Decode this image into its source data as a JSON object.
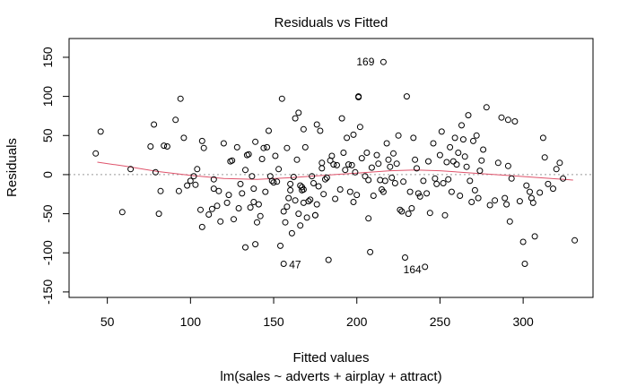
{
  "chart_data": {
    "type": "scatter",
    "title": "Residuals vs Fitted",
    "xlabel": "Fitted values",
    "xlabel2": "lm(sales ~ adverts + airplay + attract)",
    "ylabel": "Residuals",
    "xlim": [
      27,
      342
    ],
    "ylim": [
      -157,
      174
    ],
    "xticks": [
      "50",
      "100",
      "150",
      "200",
      "250",
      "300"
    ],
    "yticks": [
      "-150",
      "-100",
      "-50",
      "0",
      "50",
      "100",
      "150"
    ],
    "smoother_color": "#DF536B",
    "zero_line_color": "#999999",
    "labeled_points": [
      {
        "label": "169",
        "x": 216,
        "y": 144
      },
      {
        "label": "47",
        "x": 156,
        "y": -114
      },
      {
        "label": "164",
        "x": 241,
        "y": -118
      }
    ],
    "smoother": [
      [
        44,
        16
      ],
      [
        60,
        11
      ],
      [
        80,
        4
      ],
      [
        100,
        -1
      ],
      [
        120,
        -5
      ],
      [
        140,
        -6
      ],
      [
        160,
        -4
      ],
      [
        180,
        -1
      ],
      [
        200,
        2
      ],
      [
        220,
        5
      ],
      [
        235,
        6
      ],
      [
        250,
        5
      ],
      [
        270,
        2
      ],
      [
        290,
        -1
      ],
      [
        310,
        -4
      ],
      [
        330,
        -7
      ]
    ],
    "points": [
      [
        43,
        27
      ],
      [
        46,
        55
      ],
      [
        59,
        -48
      ],
      [
        64,
        7
      ],
      [
        76,
        36
      ],
      [
        78,
        64
      ],
      [
        79,
        3
      ],
      [
        81,
        -50
      ],
      [
        82,
        -21
      ],
      [
        84,
        37
      ],
      [
        86,
        36
      ],
      [
        91,
        70
      ],
      [
        93,
        -21
      ],
      [
        94,
        97
      ],
      [
        96,
        47
      ],
      [
        98,
        -14
      ],
      [
        100,
        -8
      ],
      [
        102,
        -2
      ],
      [
        103,
        -13
      ],
      [
        104,
        7
      ],
      [
        106,
        -45
      ],
      [
        107,
        43
      ],
      [
        107,
        -67
      ],
      [
        108,
        34
      ],
      [
        111,
        -51
      ],
      [
        113,
        -44
      ],
      [
        114,
        -6
      ],
      [
        114,
        -18
      ],
      [
        116,
        -40
      ],
      [
        117,
        -21
      ],
      [
        118,
        -60
      ],
      [
        120,
        40
      ],
      [
        122,
        -36
      ],
      [
        123,
        -26
      ],
      [
        124,
        17
      ],
      [
        125,
        18
      ],
      [
        126,
        -57
      ],
      [
        128,
        35
      ],
      [
        129,
        -43
      ],
      [
        130,
        -12
      ],
      [
        131,
        -24
      ],
      [
        133,
        -93
      ],
      [
        133,
        6
      ],
      [
        134,
        25
      ],
      [
        135,
        26
      ],
      [
        136,
        -42
      ],
      [
        137,
        -2
      ],
      [
        138,
        -18
      ],
      [
        138,
        -35
      ],
      [
        139,
        42
      ],
      [
        139,
        -89
      ],
      [
        140,
        -61
      ],
      [
        141,
        -38
      ],
      [
        142,
        -53
      ],
      [
        143,
        20
      ],
      [
        144,
        34
      ],
      [
        145,
        -22
      ],
      [
        146,
        35
      ],
      [
        147,
        56
      ],
      [
        148,
        -2
      ],
      [
        149,
        -8
      ],
      [
        150,
        -10
      ],
      [
        151,
        24
      ],
      [
        152,
        -9
      ],
      [
        153,
        7
      ],
      [
        154,
        -91
      ],
      [
        155,
        97
      ],
      [
        156,
        -114
      ],
      [
        156,
        -47
      ],
      [
        157,
        -61
      ],
      [
        158,
        34
      ],
      [
        158,
        -41
      ],
      [
        159,
        -30
      ],
      [
        160,
        -12
      ],
      [
        160,
        -20
      ],
      [
        161,
        -75
      ],
      [
        162,
        -3
      ],
      [
        163,
        72
      ],
      [
        163,
        -33
      ],
      [
        164,
        19
      ],
      [
        165,
        79
      ],
      [
        165,
        -50
      ],
      [
        166,
        -14
      ],
      [
        166,
        -65
      ],
      [
        167,
        -20
      ],
      [
        167,
        -16
      ],
      [
        168,
        58
      ],
      [
        168,
        -36
      ],
      [
        168,
        -19
      ],
      [
        169,
        35
      ],
      [
        170,
        -55
      ],
      [
        171,
        -34
      ],
      [
        172,
        -32
      ],
      [
        173,
        -2
      ],
      [
        174,
        -11
      ],
      [
        175,
        -52
      ],
      [
        175,
        -52
      ],
      [
        176,
        64
      ],
      [
        176,
        -38
      ],
      [
        177,
        -15
      ],
      [
        178,
        56
      ],
      [
        179,
        15
      ],
      [
        179,
        8
      ],
      [
        180,
        -25
      ],
      [
        181,
        -6
      ],
      [
        182,
        -4
      ],
      [
        183,
        -109
      ],
      [
        184,
        18
      ],
      [
        185,
        24
      ],
      [
        186,
        13
      ],
      [
        187,
        -31
      ],
      [
        188,
        12
      ],
      [
        190,
        -19
      ],
      [
        191,
        72
      ],
      [
        192,
        28
      ],
      [
        193,
        6
      ],
      [
        194,
        47
      ],
      [
        195,
        13
      ],
      [
        196,
        -22
      ],
      [
        197,
        12
      ],
      [
        198,
        51
      ],
      [
        198,
        -35
      ],
      [
        199,
        3
      ],
      [
        200,
        -26
      ],
      [
        201,
        100
      ],
      [
        201,
        99
      ],
      [
        202,
        61
      ],
      [
        203,
        21
      ],
      [
        205,
        -2
      ],
      [
        206,
        28
      ],
      [
        207,
        -7
      ],
      [
        207,
        -56
      ],
      [
        208,
        -99
      ],
      [
        209,
        9
      ],
      [
        210,
        -27
      ],
      [
        212,
        25
      ],
      [
        213,
        14
      ],
      [
        214,
        -7
      ],
      [
        215,
        -19
      ],
      [
        216,
        -22
      ],
      [
        216,
        144
      ],
      [
        217,
        -8
      ],
      [
        218,
        40
      ],
      [
        219,
        19
      ],
      [
        220,
        10
      ],
      [
        221,
        -4
      ],
      [
        222,
        27
      ],
      [
        223,
        -11
      ],
      [
        224,
        14
      ],
      [
        225,
        50
      ],
      [
        226,
        -45
      ],
      [
        227,
        -47
      ],
      [
        228,
        -9
      ],
      [
        229,
        -106
      ],
      [
        230,
        100
      ],
      [
        231,
        -50
      ],
      [
        232,
        -22
      ],
      [
        233,
        -43
      ],
      [
        234,
        47
      ],
      [
        235,
        19
      ],
      [
        236,
        8
      ],
      [
        237,
        -24
      ],
      [
        238,
        -28
      ],
      [
        240,
        -8
      ],
      [
        241,
        -118
      ],
      [
        242,
        -24
      ],
      [
        243,
        17
      ],
      [
        244,
        -49
      ],
      [
        246,
        40
      ],
      [
        247,
        -5
      ],
      [
        248,
        -12
      ],
      [
        250,
        25
      ],
      [
        251,
        55
      ],
      [
        252,
        -11
      ],
      [
        253,
        -52
      ],
      [
        254,
        16
      ],
      [
        255,
        -6
      ],
      [
        256,
        35
      ],
      [
        257,
        -22
      ],
      [
        258,
        17
      ],
      [
        259,
        47
      ],
      [
        260,
        13
      ],
      [
        261,
        28
      ],
      [
        262,
        -27
      ],
      [
        263,
        63
      ],
      [
        264,
        45
      ],
      [
        265,
        23
      ],
      [
        266,
        10
      ],
      [
        267,
        76
      ],
      [
        268,
        -8
      ],
      [
        269,
        -35
      ],
      [
        270,
        43
      ],
      [
        271,
        -20
      ],
      [
        272,
        50
      ],
      [
        273,
        -30
      ],
      [
        274,
        5
      ],
      [
        275,
        18
      ],
      [
        276,
        32
      ],
      [
        278,
        86
      ],
      [
        280,
        -39
      ],
      [
        283,
        -33
      ],
      [
        285,
        15
      ],
      [
        287,
        73
      ],
      [
        289,
        -30
      ],
      [
        290,
        -38
      ],
      [
        291,
        70
      ],
      [
        291,
        11
      ],
      [
        292,
        -60
      ],
      [
        293,
        -5
      ],
      [
        295,
        68
      ],
      [
        298,
        -34
      ],
      [
        300,
        -86
      ],
      [
        301,
        -114
      ],
      [
        302,
        -14
      ],
      [
        304,
        -22
      ],
      [
        305,
        -30
      ],
      [
        306,
        -36
      ],
      [
        307,
        -79
      ],
      [
        310,
        -23
      ],
      [
        312,
        47
      ],
      [
        313,
        22
      ],
      [
        315,
        -12
      ],
      [
        318,
        -18
      ],
      [
        320,
        7
      ],
      [
        322,
        15
      ],
      [
        324,
        -5
      ],
      [
        331,
        -84
      ]
    ]
  }
}
